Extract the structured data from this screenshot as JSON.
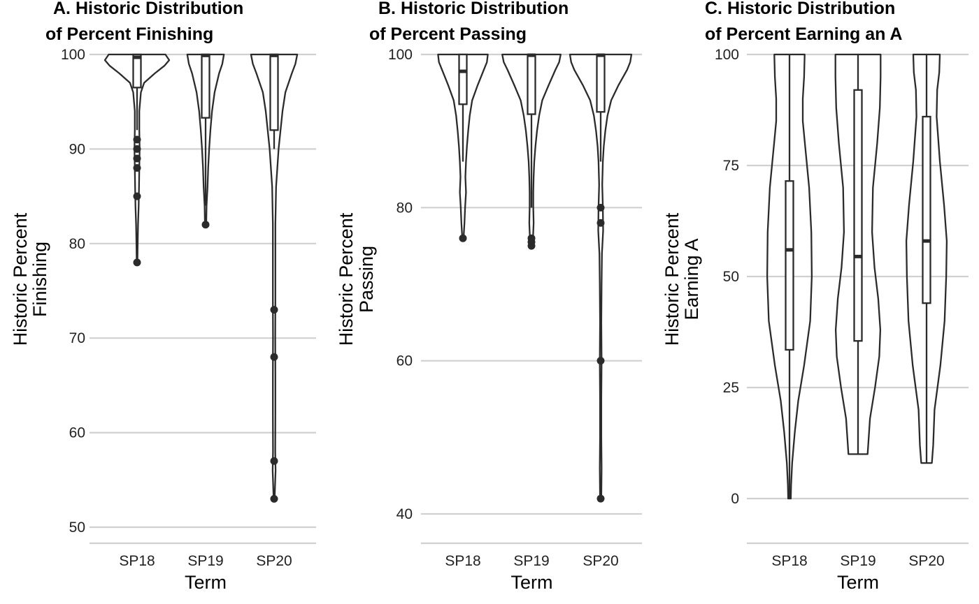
{
  "chart_data": [
    {
      "type": "violin",
      "title_lines": [
        "A. Historic Distribution",
        "of Percent Finishing"
      ],
      "xlabel": "Term",
      "ylabel_lines": [
        "Historic Percent",
        "Finishing"
      ],
      "ylim": [
        48,
        103.5
      ],
      "yticks": [
        50,
        60,
        70,
        80,
        90,
        100
      ],
      "categories": [
        "SP18",
        "SP19",
        "SP20"
      ],
      "groups": [
        {
          "name": "SP18",
          "box": {
            "q1": 96.5,
            "median": 99.7,
            "q3": 100,
            "whisker_low": 92,
            "whisker_high": 100
          },
          "outliers": [
            91,
            90,
            89,
            88,
            85,
            78
          ],
          "violin": [
            [
              78,
              0.01
            ],
            [
              80,
              0.02
            ],
            [
              82,
              0.03
            ],
            [
              84,
              0.05
            ],
            [
              86,
              0.06
            ],
            [
              88,
              0.07
            ],
            [
              90,
              0.08
            ],
            [
              92,
              0.07
            ],
            [
              94,
              0.07
            ],
            [
              96,
              0.12
            ],
            [
              97,
              0.22
            ],
            [
              98,
              0.55
            ],
            [
              98.8,
              0.85
            ],
            [
              99.4,
              1.0
            ],
            [
              100,
              0.88
            ]
          ]
        },
        {
          "name": "SP19",
          "box": {
            "q1": 93.3,
            "median": 99.9,
            "q3": 100,
            "whisker_low": 84,
            "whisker_high": 100
          },
          "outliers": [
            82
          ],
          "violin": [
            [
              82,
              0.02
            ],
            [
              84,
              0.03
            ],
            [
              86,
              0.06
            ],
            [
              88,
              0.08
            ],
            [
              90,
              0.11
            ],
            [
              92,
              0.15
            ],
            [
              94,
              0.2
            ],
            [
              96,
              0.28
            ],
            [
              98,
              0.42
            ],
            [
              99,
              0.52
            ],
            [
              100,
              0.57
            ]
          ]
        },
        {
          "name": "SP20",
          "box": {
            "q1": 92,
            "median": 99.9,
            "q3": 100,
            "whisker_low": 90,
            "whisker_high": 100
          },
          "outliers": [
            73,
            68,
            57,
            53
          ],
          "violin": [
            [
              53,
              0.015
            ],
            [
              56,
              0.045
            ],
            [
              58,
              0.035
            ],
            [
              62,
              0.04
            ],
            [
              66,
              0.04
            ],
            [
              70,
              0.035
            ],
            [
              74,
              0.04
            ],
            [
              78,
              0.04
            ],
            [
              82,
              0.04
            ],
            [
              86,
              0.06
            ],
            [
              88,
              0.1
            ],
            [
              90,
              0.14
            ],
            [
              92,
              0.2
            ],
            [
              94,
              0.26
            ],
            [
              96,
              0.35
            ],
            [
              98,
              0.55
            ],
            [
              99,
              0.66
            ],
            [
              100,
              0.72
            ]
          ]
        }
      ]
    },
    {
      "type": "violin",
      "title_lines": [
        "B. Historic Distribution",
        "of Percent Passing"
      ],
      "xlabel": "Term",
      "ylabel_lines": [
        "Historic Percent",
        "Passing"
      ],
      "ylim": [
        36,
        103.5
      ],
      "yticks": [
        40,
        60,
        80,
        100
      ],
      "categories": [
        "SP18",
        "SP19",
        "SP20"
      ],
      "groups": [
        {
          "name": "SP18",
          "box": {
            "q1": 93.5,
            "median": 97.8,
            "q3": 100,
            "whisker_low": 86,
            "whisker_high": 100
          },
          "outliers": [
            76
          ],
          "violin": [
            [
              76,
              0.02
            ],
            [
              78,
              0.05
            ],
            [
              80,
              0.07
            ],
            [
              82,
              0.1
            ],
            [
              84,
              0.08
            ],
            [
              86,
              0.1
            ],
            [
              88,
              0.13
            ],
            [
              90,
              0.17
            ],
            [
              92,
              0.22
            ],
            [
              94,
              0.3
            ],
            [
              96,
              0.48
            ],
            [
              98,
              0.68
            ],
            [
              99,
              0.78
            ],
            [
              100,
              0.81
            ]
          ]
        },
        {
          "name": "SP19",
          "box": {
            "q1": 92.2,
            "median": 99.9,
            "q3": 100,
            "whisker_low": 80,
            "whisker_high": 100
          },
          "outliers": [
            76,
            75.5,
            75
          ],
          "violin": [
            [
              75,
              0.02
            ],
            [
              76,
              0.05
            ],
            [
              78,
              0.07
            ],
            [
              80,
              0.06
            ],
            [
              82,
              0.06
            ],
            [
              84,
              0.07
            ],
            [
              86,
              0.09
            ],
            [
              88,
              0.13
            ],
            [
              90,
              0.18
            ],
            [
              92,
              0.25
            ],
            [
              94,
              0.35
            ],
            [
              96,
              0.56
            ],
            [
              98,
              0.78
            ],
            [
              99,
              0.9
            ],
            [
              100,
              0.95
            ]
          ]
        },
        {
          "name": "SP20",
          "box": {
            "q1": 92.5,
            "median": 99.9,
            "q3": 100,
            "whisker_low": 86,
            "whisker_high": 100
          },
          "outliers": [
            80,
            78,
            60,
            42
          ],
          "violin": [
            [
              42,
              0.02
            ],
            [
              46,
              0.03
            ],
            [
              50,
              0.02
            ],
            [
              55,
              0.02
            ],
            [
              60,
              0.03
            ],
            [
              65,
              0.02
            ],
            [
              70,
              0.03
            ],
            [
              74,
              0.04
            ],
            [
              77,
              0.08
            ],
            [
              80,
              0.07
            ],
            [
              83,
              0.05
            ],
            [
              86,
              0.07
            ],
            [
              88,
              0.1
            ],
            [
              90,
              0.15
            ],
            [
              92,
              0.22
            ],
            [
              94,
              0.34
            ],
            [
              96,
              0.58
            ],
            [
              98,
              0.86
            ],
            [
              99,
              0.96
            ],
            [
              100,
              1.0
            ]
          ]
        }
      ]
    },
    {
      "type": "violin",
      "title_lines": [
        "C. Historic Distribution",
        "of Percent Earning an A"
      ],
      "xlabel": "Term",
      "ylabel_lines": [
        "Historic Percent",
        "Earning A"
      ],
      "ylim": [
        -10,
        100
      ],
      "yticks": [
        0,
        25,
        50,
        75,
        100
      ],
      "categories": [
        "SP18",
        "SP19",
        "SP20"
      ],
      "groups": [
        {
          "name": "SP18",
          "box": {
            "q1": 33.5,
            "median": 56,
            "q3": 71.5,
            "whisker_low": 0,
            "whisker_high": 100
          },
          "outliers": [],
          "violin": [
            [
              0,
              0.05
            ],
            [
              3,
              0.06
            ],
            [
              8,
              0.1
            ],
            [
              15,
              0.2
            ],
            [
              22,
              0.33
            ],
            [
              30,
              0.55
            ],
            [
              40,
              0.78
            ],
            [
              50,
              0.84
            ],
            [
              60,
              0.82
            ],
            [
              70,
              0.74
            ],
            [
              80,
              0.58
            ],
            [
              85,
              0.5
            ],
            [
              90,
              0.5
            ],
            [
              95,
              0.55
            ],
            [
              100,
              0.57
            ]
          ]
        },
        {
          "name": "SP19",
          "box": {
            "q1": 35.5,
            "median": 54.5,
            "q3": 92,
            "whisker_low": 10,
            "whisker_high": 100
          },
          "outliers": [],
          "violin": [
            [
              10,
              0.36
            ],
            [
              18,
              0.45
            ],
            [
              25,
              0.64
            ],
            [
              32,
              0.8
            ],
            [
              38,
              0.84
            ],
            [
              45,
              0.76
            ],
            [
              52,
              0.62
            ],
            [
              60,
              0.53
            ],
            [
              70,
              0.56
            ],
            [
              80,
              0.72
            ],
            [
              88,
              0.82
            ],
            [
              95,
              0.85
            ],
            [
              100,
              0.85
            ]
          ]
        },
        {
          "name": "SP20",
          "box": {
            "q1": 44,
            "median": 58,
            "q3": 86,
            "whisker_low": 8,
            "whisker_high": 100
          },
          "outliers": [],
          "violin": [
            [
              8,
              0.2
            ],
            [
              12,
              0.25
            ],
            [
              20,
              0.3
            ],
            [
              30,
              0.52
            ],
            [
              40,
              0.68
            ],
            [
              50,
              0.74
            ],
            [
              58,
              0.76
            ],
            [
              66,
              0.66
            ],
            [
              76,
              0.5
            ],
            [
              86,
              0.38
            ],
            [
              92,
              0.4
            ],
            [
              96,
              0.48
            ],
            [
              100,
              0.5
            ]
          ]
        }
      ]
    }
  ]
}
